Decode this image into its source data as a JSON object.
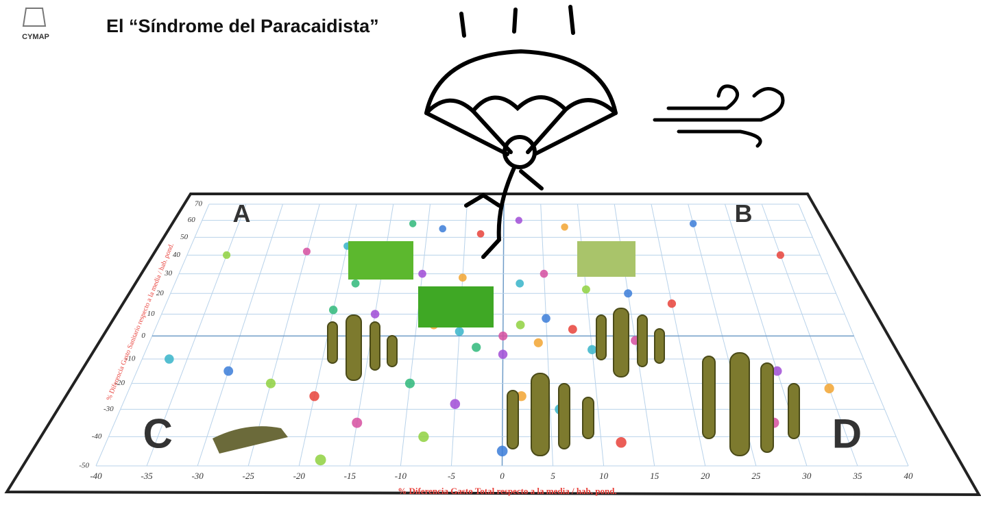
{
  "header": {
    "logo": "CYMAP",
    "title": "El “Síndrome del Paracaidista”"
  },
  "chart_data": {
    "type": "scatter",
    "x_label": "% Diferencia Gasto Total respecto a la media / hab. pond.",
    "y_label": "% Diferencia Gasto Sanitario respecto a la media / hab. pond.",
    "quadrants": [
      "A",
      "B",
      "C",
      "D"
    ],
    "xlim": [
      -40,
      40
    ],
    "xticks": [
      -40,
      -35,
      -30,
      -25,
      -20,
      -15,
      -10,
      -5,
      0,
      5,
      10,
      15,
      20,
      25,
      30,
      35,
      40
    ],
    "ylim": [
      -50,
      70
    ],
    "yticks": [
      -50,
      -40,
      -30,
      -20,
      -10,
      0,
      10,
      20,
      30,
      40,
      50,
      60,
      70
    ],
    "grid": true,
    "palette": [
      "#3b7dd8",
      "#e8423a",
      "#2fb87a",
      "#a04cd6",
      "#f2a531",
      "#37b4c9",
      "#d64fa0",
      "#8fd13f"
    ],
    "x": [
      -8,
      -3,
      -12,
      2,
      8,
      -20,
      -25,
      -35,
      25,
      35,
      -18,
      -10,
      -5,
      2,
      5,
      10,
      15,
      20,
      -20,
      -15,
      -8,
      -5,
      0,
      2,
      5,
      8,
      -3,
      0,
      4,
      10,
      15,
      -25,
      -30,
      -20,
      -10,
      -5,
      2,
      6,
      -15,
      -8,
      0,
      12,
      22,
      30,
      35,
      -37,
      28,
      -18
    ],
    "y": [
      55,
      52,
      58,
      60,
      56,
      45,
      42,
      40,
      58,
      40,
      25,
      30,
      28,
      25,
      30,
      22,
      20,
      15,
      12,
      10,
      5,
      2,
      0,
      5,
      8,
      3,
      -5,
      -8,
      -3,
      -6,
      -2,
      -20,
      -15,
      -25,
      -20,
      -28,
      -25,
      -30,
      -35,
      -40,
      -45,
      -42,
      -20,
      -15,
      -22,
      -10,
      -35,
      -48
    ]
  }
}
